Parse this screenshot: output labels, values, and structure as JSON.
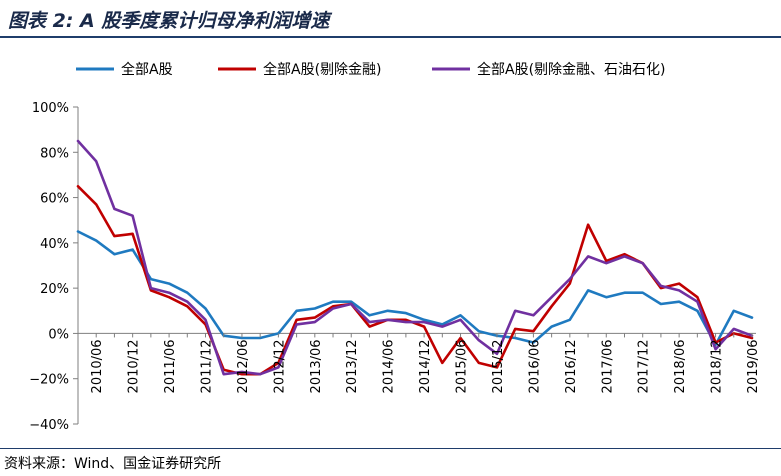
{
  "header": {
    "title": "图表 2:  A 股季度累计归母净利润增速"
  },
  "footer": {
    "source": "资料来源：Wind、国金证券研究所"
  },
  "colors": {
    "series1": "#1f7ac0",
    "series2": "#c00000",
    "series3": "#7030a0",
    "axis": "#7f7f7f"
  },
  "chart_data": {
    "type": "line",
    "legend_position": "top",
    "grid": false,
    "ylim": [
      -40,
      100
    ],
    "yticks": [
      -40,
      -20,
      0,
      20,
      40,
      60,
      80,
      100
    ],
    "ytick_labels": [
      "−40%",
      "−20%",
      "0%",
      "20%",
      "40%",
      "60%",
      "80%",
      "100%"
    ],
    "x_tick_labels": [
      "2010/06",
      "2010/12",
      "2011/06",
      "2011/12",
      "2012/06",
      "2012/12",
      "2013/06",
      "2013/12",
      "2014/06",
      "2014/12",
      "2015/06",
      "2015/12",
      "2016/06",
      "2016/12",
      "2017/06",
      "2017/12",
      "2018/06",
      "2018/12",
      "2019/06"
    ],
    "x": [
      "2010/03",
      "2010/06",
      "2010/09",
      "2010/12",
      "2011/03",
      "2011/06",
      "2011/09",
      "2011/12",
      "2012/03",
      "2012/06",
      "2012/09",
      "2012/12",
      "2013/03",
      "2013/06",
      "2013/09",
      "2013/12",
      "2014/03",
      "2014/06",
      "2014/09",
      "2014/12",
      "2015/03",
      "2015/06",
      "2015/09",
      "2015/12",
      "2016/03",
      "2016/06",
      "2016/09",
      "2016/12",
      "2017/03",
      "2017/06",
      "2017/09",
      "2017/12",
      "2018/03",
      "2018/06",
      "2018/09",
      "2018/12",
      "2019/03",
      "2019/06"
    ],
    "series": [
      {
        "name": "全部A股",
        "color_key": "series1",
        "values": [
          45,
          41,
          35,
          37,
          24,
          22,
          18,
          11,
          -1,
          -2,
          -2,
          0,
          10,
          11,
          14,
          14,
          8,
          10,
          9,
          6,
          4,
          8,
          1,
          -1,
          -2,
          -4,
          3,
          6,
          19,
          16,
          18,
          18,
          13,
          14,
          10,
          -5,
          10,
          7
        ]
      },
      {
        "name": "全部A股(剔除金融)",
        "color_key": "series2",
        "values": [
          65,
          57,
          43,
          44,
          19,
          16,
          12,
          4,
          -16,
          -18,
          -18,
          -13,
          6,
          7,
          12,
          13,
          3,
          6,
          6,
          3,
          -13,
          -2,
          -13,
          -15,
          2,
          1,
          12,
          22,
          48,
          32,
          35,
          31,
          20,
          22,
          16,
          -4,
          0,
          -2
        ]
      },
      {
        "name": "全部A股(剔除金融、石油石化)",
        "color_key": "series3",
        "values": [
          85,
          76,
          55,
          52,
          20,
          18,
          14,
          6,
          -18,
          -17,
          -18,
          -15,
          4,
          5,
          11,
          13,
          5,
          6,
          5,
          5,
          3,
          6,
          -3,
          -9,
          10,
          8,
          16,
          24,
          34,
          31,
          34,
          31,
          21,
          19,
          14,
          -7,
          2,
          -1
        ]
      }
    ]
  }
}
